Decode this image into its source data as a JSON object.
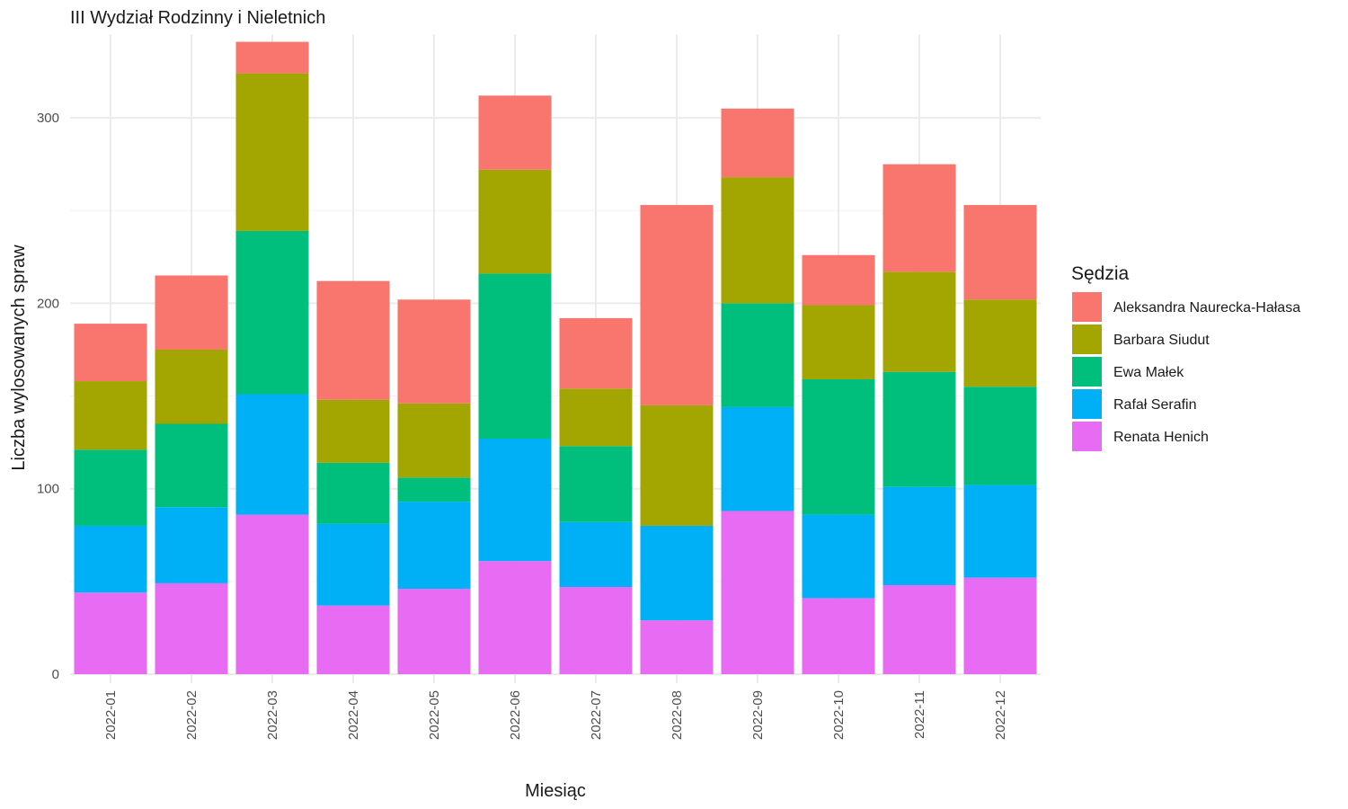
{
  "chart_data": {
    "type": "bar",
    "stacked": true,
    "title": "III Wydział Rodzinny i Nieletnich",
    "xlabel": "Miesiąc",
    "ylabel": "Liczba wylosowanych spraw",
    "ylim": [
      0,
      345
    ],
    "yticks": [
      0,
      100,
      200,
      300
    ],
    "grid": true,
    "legend": {
      "title": "Sędzia",
      "position": "right"
    },
    "categories": [
      "2022-01",
      "2022-02",
      "2022-03",
      "2022-04",
      "2022-05",
      "2022-06",
      "2022-07",
      "2022-08",
      "2022-09",
      "2022-10",
      "2022-11",
      "2022-12"
    ],
    "series": [
      {
        "name": "Renata Henich",
        "color": "#E76BF3",
        "values": [
          44,
          49,
          86,
          37,
          46,
          61,
          47,
          29,
          88,
          41,
          48,
          52
        ]
      },
      {
        "name": "Rafał Serafin",
        "color": "#00B0F6",
        "values": [
          36,
          41,
          65,
          44,
          47,
          66,
          35,
          51,
          56,
          45,
          53,
          50
        ]
      },
      {
        "name": "Ewa Małek",
        "color": "#00BF7D",
        "values": [
          41,
          45,
          88,
          33,
          13,
          89,
          41,
          0,
          56,
          73,
          62,
          53
        ]
      },
      {
        "name": "Barbara Siudut",
        "color": "#A3A500",
        "values": [
          37,
          40,
          85,
          34,
          40,
          56,
          31,
          65,
          68,
          40,
          54,
          47
        ]
      },
      {
        "name": "Aleksandra Naurecka-Hałasa",
        "color": "#F8766D",
        "values": [
          31,
          40,
          17,
          64,
          56,
          40,
          38,
          108,
          37,
          27,
          58,
          51
        ]
      }
    ]
  }
}
